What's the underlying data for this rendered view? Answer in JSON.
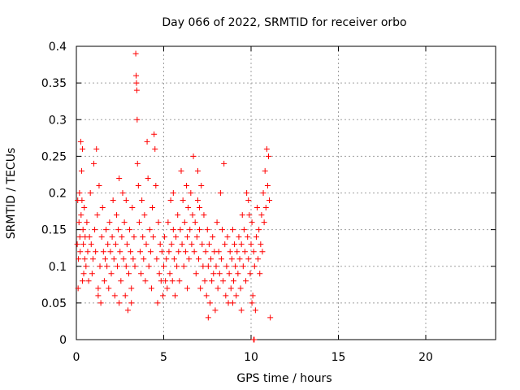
{
  "chart_data": {
    "type": "scatter",
    "title": "Day 066 of 2022, SRMTID for receiver orbo",
    "xlabel": "GPS time / hours",
    "ylabel": "SRMTID / TECUs",
    "xlim": [
      0,
      24
    ],
    "ylim": [
      0,
      0.4
    ],
    "xticks": [
      "0",
      "5",
      "10",
      "15",
      "20"
    ],
    "yticks": [
      "0",
      "0.05",
      "0.1",
      "0.15",
      "0.2",
      "0.25",
      "0.3",
      "0.35",
      "0.4"
    ],
    "grid": true,
    "marker": "+",
    "color": "#ff0000",
    "series": [
      {
        "name": "orbo",
        "points": [
          [
            0.05,
            0.13
          ],
          [
            0.08,
            0.19
          ],
          [
            0.1,
            0.07
          ],
          [
            0.12,
            0.11
          ],
          [
            0.15,
            0.16
          ],
          [
            0.18,
            0.2
          ],
          [
            0.2,
            0.14
          ],
          [
            0.22,
            0.12
          ],
          [
            0.25,
            0.27
          ],
          [
            0.27,
            0.17
          ],
          [
            0.3,
            0.23
          ],
          [
            0.32,
            0.19
          ],
          [
            0.35,
            0.26
          ],
          [
            0.38,
            0.15
          ],
          [
            0.4,
            0.13
          ],
          [
            0.42,
            0.09
          ],
          [
            0.45,
            0.18
          ],
          [
            0.48,
            0.11
          ],
          [
            0.5,
            0.14
          ],
          [
            0.55,
            0.1
          ],
          [
            0.6,
            0.16
          ],
          [
            0.65,
            0.12
          ],
          [
            0.7,
            0.08
          ],
          [
            0.75,
            0.14
          ],
          [
            0.8,
            0.2
          ],
          [
            0.85,
            0.13
          ],
          [
            0.9,
            0.09
          ],
          [
            0.95,
            0.11
          ],
          [
            1.0,
            0.24
          ],
          [
            1.05,
            0.15
          ],
          [
            1.1,
            0.12
          ],
          [
            1.15,
            0.26
          ],
          [
            1.2,
            0.17
          ],
          [
            1.25,
            0.07
          ],
          [
            1.3,
            0.21
          ],
          [
            1.35,
            0.1
          ],
          [
            1.4,
            0.05
          ],
          [
            1.45,
            0.14
          ],
          [
            1.5,
            0.18
          ],
          [
            1.55,
            0.12
          ],
          [
            1.6,
            0.08
          ],
          [
            1.65,
            0.11
          ],
          [
            1.7,
            0.15
          ],
          [
            1.75,
            0.1
          ],
          [
            1.8,
            0.13
          ],
          [
            1.85,
            0.07
          ],
          [
            1.9,
            0.16
          ],
          [
            1.95,
            0.12
          ],
          [
            2.0,
            0.09
          ],
          [
            2.05,
            0.14
          ],
          [
            2.1,
            0.19
          ],
          [
            2.15,
            0.11
          ],
          [
            2.2,
            0.06
          ],
          [
            2.25,
            0.13
          ],
          [
            2.3,
            0.17
          ],
          [
            2.35,
            0.1
          ],
          [
            2.4,
            0.15
          ],
          [
            2.45,
            0.22
          ],
          [
            2.5,
            0.12
          ],
          [
            2.55,
            0.08
          ],
          [
            2.6,
            0.14
          ],
          [
            2.65,
            0.2
          ],
          [
            2.7,
            0.11
          ],
          [
            2.75,
            0.16
          ],
          [
            2.8,
            0.06
          ],
          [
            2.85,
            0.1
          ],
          [
            2.9,
            0.13
          ],
          [
            2.95,
            0.04
          ],
          [
            3.0,
            0.09
          ],
          [
            3.05,
            0.15
          ],
          [
            3.1,
            0.12
          ],
          [
            3.15,
            0.07
          ],
          [
            3.2,
            0.18
          ],
          [
            3.25,
            0.11
          ],
          [
            3.3,
            0.14
          ],
          [
            3.35,
            0.1
          ],
          [
            3.4,
            0.39
          ],
          [
            3.42,
            0.36
          ],
          [
            3.44,
            0.35
          ],
          [
            3.46,
            0.34
          ],
          [
            3.48,
            0.3
          ],
          [
            3.5,
            0.24
          ],
          [
            3.55,
            0.21
          ],
          [
            3.6,
            0.16
          ],
          [
            3.65,
            0.12
          ],
          [
            3.7,
            0.09
          ],
          [
            3.75,
            0.19
          ],
          [
            3.8,
            0.14
          ],
          [
            3.85,
            0.11
          ],
          [
            3.9,
            0.17
          ],
          [
            3.95,
            0.08
          ],
          [
            4.0,
            0.13
          ],
          [
            4.05,
            0.27
          ],
          [
            4.1,
            0.22
          ],
          [
            4.15,
            0.1
          ],
          [
            4.2,
            0.15
          ],
          [
            4.25,
            0.12
          ],
          [
            4.3,
            0.07
          ],
          [
            4.35,
            0.18
          ],
          [
            4.4,
            0.14
          ],
          [
            4.45,
            0.28
          ],
          [
            4.5,
            0.26
          ],
          [
            4.55,
            0.21
          ],
          [
            4.6,
            0.11
          ],
          [
            4.65,
            0.05
          ],
          [
            4.7,
            0.16
          ],
          [
            4.75,
            0.09
          ],
          [
            4.8,
            0.13
          ],
          [
            4.85,
            0.08
          ],
          [
            4.9,
            0.12
          ],
          [
            4.95,
            0.06
          ],
          [
            5.0,
            0.1
          ],
          [
            5.05,
            0.14
          ],
          [
            5.1,
            0.08
          ],
          [
            5.15,
            0.11
          ],
          [
            5.2,
            0.07
          ],
          [
            5.25,
            0.16
          ],
          [
            5.3,
            0.12
          ],
          [
            5.35,
            0.09
          ],
          [
            5.4,
            0.19
          ],
          [
            5.45,
            0.13
          ],
          [
            5.5,
            0.08
          ],
          [
            5.55,
            0.15
          ],
          [
            5.6,
            0.11
          ],
          [
            5.65,
            0.06
          ],
          [
            5.7,
            0.14
          ],
          [
            5.75,
            0.1
          ],
          [
            5.8,
            0.17
          ],
          [
            5.85,
            0.12
          ],
          [
            5.9,
            0.08
          ],
          [
            5.95,
            0.15
          ],
          [
            6.0,
            0.23
          ],
          [
            6.05,
            0.13
          ],
          [
            6.1,
            0.19
          ],
          [
            6.15,
            0.1
          ],
          [
            6.2,
            0.16
          ],
          [
            6.25,
            0.12
          ],
          [
            6.3,
            0.21
          ],
          [
            6.35,
            0.14
          ],
          [
            6.4,
            0.18
          ],
          [
            6.45,
            0.11
          ],
          [
            6.5,
            0.15
          ],
          [
            6.55,
            0.2
          ],
          [
            6.6,
            0.13
          ],
          [
            6.65,
            0.17
          ],
          [
            6.7,
            0.25
          ],
          [
            6.75,
            0.12
          ],
          [
            6.8,
            0.16
          ],
          [
            6.85,
            0.09
          ],
          [
            6.9,
            0.14
          ],
          [
            6.95,
            0.19
          ],
          [
            7.0,
            0.11
          ],
          [
            7.05,
            0.15
          ],
          [
            7.1,
            0.07
          ],
          [
            7.15,
            0.21
          ],
          [
            7.2,
            0.13
          ],
          [
            7.25,
            0.1
          ],
          [
            7.3,
            0.17
          ],
          [
            7.35,
            0.08
          ],
          [
            7.4,
            0.12
          ],
          [
            7.45,
            0.06
          ],
          [
            7.5,
            0.15
          ],
          [
            7.55,
            0.1
          ],
          [
            7.6,
            0.13
          ],
          [
            7.65,
            0.05
          ],
          [
            7.7,
            0.11
          ],
          [
            7.75,
            0.08
          ],
          [
            7.8,
            0.14
          ],
          [
            7.85,
            0.09
          ],
          [
            7.9,
            0.12
          ],
          [
            7.95,
            0.04
          ],
          [
            8.0,
            0.1
          ],
          [
            8.05,
            0.16
          ],
          [
            8.1,
            0.07
          ],
          [
            8.15,
            0.12
          ],
          [
            8.2,
            0.09
          ],
          [
            8.25,
            0.2
          ],
          [
            8.3,
            0.11
          ],
          [
            8.35,
            0.15
          ],
          [
            8.4,
            0.08
          ],
          [
            8.45,
            0.24
          ],
          [
            8.5,
            0.13
          ],
          [
            8.55,
            0.06
          ],
          [
            8.6,
            0.1
          ],
          [
            8.65,
            0.14
          ],
          [
            8.7,
            0.05
          ],
          [
            8.75,
            0.09
          ],
          [
            8.8,
            0.12
          ],
          [
            8.85,
            0.07
          ],
          [
            8.9,
            0.11
          ],
          [
            8.95,
            0.15
          ],
          [
            9.0,
            0.08
          ],
          [
            9.05,
            0.13
          ],
          [
            9.1,
            0.1
          ],
          [
            9.15,
            0.06
          ],
          [
            9.2,
            0.12
          ],
          [
            9.25,
            0.09
          ],
          [
            9.3,
            0.14
          ],
          [
            9.35,
            0.11
          ],
          [
            9.4,
            0.07
          ],
          [
            9.45,
            0.13
          ],
          [
            9.5,
            0.17
          ],
          [
            9.55,
            0.1
          ],
          [
            9.6,
            0.15
          ],
          [
            9.65,
            0.12
          ],
          [
            9.7,
            0.08
          ],
          [
            9.75,
            0.2
          ],
          [
            9.8,
            0.14
          ],
          [
            9.85,
            0.11
          ],
          [
            9.9,
            0.17
          ],
          [
            9.95,
            0.09
          ],
          [
            10.0,
            0.13
          ],
          [
            10.05,
            0.16
          ],
          [
            10.1,
            0.06
          ],
          [
            10.15,
            0.12
          ],
          [
            10.2,
            0.1
          ],
          [
            10.25,
            0.04
          ],
          [
            10.3,
            0.14
          ],
          [
            10.35,
            0.18
          ],
          [
            10.4,
            0.11
          ],
          [
            10.45,
            0.15
          ],
          [
            10.5,
            0.09
          ],
          [
            10.55,
            0.13
          ],
          [
            10.6,
            0.17
          ],
          [
            10.65,
            0.12
          ],
          [
            10.7,
            0.2
          ],
          [
            10.75,
            0.16
          ],
          [
            10.8,
            0.23
          ],
          [
            10.85,
            0.18
          ],
          [
            10.9,
            0.26
          ],
          [
            10.95,
            0.21
          ],
          [
            11.0,
            0.25
          ],
          [
            11.05,
            0.19
          ],
          [
            11.1,
            0.03
          ],
          [
            1.25,
            0.06
          ],
          [
            2.45,
            0.05
          ],
          [
            3.15,
            0.05
          ],
          [
            6.35,
            0.07
          ],
          [
            7.55,
            0.03
          ],
          [
            8.95,
            0.05
          ],
          [
            9.45,
            0.04
          ],
          [
            10.05,
            0.05
          ],
          [
            0.35,
            0.08
          ],
          [
            2.85,
            0.19
          ],
          [
            5.55,
            0.2
          ],
          [
            6.95,
            0.23
          ],
          [
            7.05,
            0.18
          ],
          [
            9.85,
            0.19
          ],
          [
            10.15,
            0.0
          ],
          [
            10.18,
            0.0
          ]
        ]
      }
    ]
  }
}
